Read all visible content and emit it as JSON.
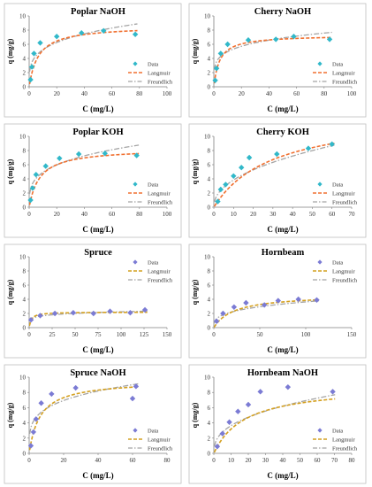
{
  "legend_labels": {
    "data": "Data",
    "langmuir": "Langmuir",
    "freundlich": "Freundlich"
  },
  "colors": {
    "panel_border": "#bfbfbf",
    "axis": "#7f7f7f",
    "grid": "#d9d9d9",
    "data_teal": "#31b8c9",
    "data_purple": "#7b7bd4",
    "langmuir_orange": "#f07030",
    "langmuir_gold": "#d4a020",
    "freundlich_gray": "#a5a5a5"
  },
  "chart_data": [
    {
      "type": "scatter",
      "title": "Poplar NaOH",
      "xlabel": "C (mg/L)",
      "ylabel": "q (mg/g)",
      "xlim": [
        0,
        100
      ],
      "ylim": [
        0,
        10
      ],
      "xticks": [
        0,
        20,
        40,
        60,
        80,
        100
      ],
      "yticks": [
        0,
        2,
        4,
        6,
        8,
        10
      ],
      "grid": false,
      "legend_position": "bottom-right",
      "marker_color": "data_teal",
      "langmuir_color": "langmuir_orange",
      "data": {
        "x": [
          1,
          2,
          3.5,
          8,
          20,
          38,
          54,
          77
        ],
        "y": [
          1.0,
          2.8,
          4.7,
          6.2,
          7.1,
          7.6,
          7.9,
          7.4
        ]
      },
      "langmuir_fit": {
        "qmax": 8.6,
        "K": 0.15
      },
      "freundlich_fit": {
        "Kf": 2.9,
        "n": 3.9
      }
    },
    {
      "type": "scatter",
      "title": "Cherry NaOH",
      "xlabel": "C (mg/L)",
      "ylabel": "q (mg/g)",
      "xlim": [
        0,
        100
      ],
      "ylim": [
        0,
        10
      ],
      "xticks": [
        0,
        20,
        40,
        60,
        80,
        100
      ],
      "yticks": [
        0,
        2,
        4,
        6,
        8,
        10
      ],
      "grid": false,
      "legend_position": "bottom-right",
      "marker_color": "data_teal",
      "langmuir_color": "langmuir_orange",
      "data": {
        "x": [
          1,
          2,
          5,
          10,
          25,
          45,
          58,
          84
        ],
        "y": [
          0.9,
          2.6,
          4.7,
          6.0,
          6.6,
          6.7,
          7.1,
          6.7
        ]
      },
      "langmuir_fit": {
        "qmax": 7.3,
        "K": 0.24
      },
      "freundlich_fit": {
        "Kf": 3.1,
        "n": 4.9
      }
    },
    {
      "type": "scatter",
      "title": "Poplar KOH",
      "xlabel": "C (mg/L)",
      "ylabel": "q (mg/g)",
      "xlim": [
        0,
        100
      ],
      "ylim": [
        0,
        10
      ],
      "xticks": [
        0,
        20,
        40,
        60,
        80,
        100
      ],
      "yticks": [
        0,
        2,
        4,
        6,
        8,
        10
      ],
      "grid": false,
      "legend_position": "bottom-right",
      "marker_color": "data_teal",
      "langmuir_color": "langmuir_orange",
      "data": {
        "x": [
          1,
          2.5,
          5,
          12,
          22,
          36,
          55,
          78
        ],
        "y": [
          1.0,
          2.7,
          4.6,
          5.8,
          6.9,
          7.5,
          7.6,
          7.3
        ]
      },
      "langmuir_fit": {
        "qmax": 8.3,
        "K": 0.13
      },
      "freundlich_fit": {
        "Kf": 2.6,
        "n": 3.6
      }
    },
    {
      "type": "scatter",
      "title": "Cherry KOH",
      "xlabel": "C (mg/L)",
      "ylabel": "q (mg/g)",
      "xlim": [
        0,
        70
      ],
      "ylim": [
        0,
        10
      ],
      "xticks": [
        0,
        10,
        20,
        30,
        40,
        50,
        60,
        70
      ],
      "yticks": [
        0,
        2,
        4,
        6,
        8,
        10
      ],
      "grid": false,
      "legend_position": "bottom-right",
      "marker_color": "data_teal",
      "langmuir_color": "langmuir_orange",
      "data": {
        "x": [
          2,
          3.5,
          6,
          10,
          14,
          18,
          32,
          48,
          60
        ],
        "y": [
          0.8,
          2.5,
          3.2,
          4.4,
          5.6,
          7.0,
          7.5,
          8.3,
          8.9
        ]
      },
      "langmuir_fit": {
        "qmax": 13.5,
        "K": 0.033
      },
      "freundlich_fit": {
        "Kf": 1.35,
        "n": 2.2
      }
    },
    {
      "type": "scatter",
      "title": "Spruce",
      "xlabel": "C (mg/L)",
      "ylabel": "q (mg/g)",
      "xlim": [
        0,
        150
      ],
      "ylim": [
        0,
        10
      ],
      "xticks": [
        0,
        25,
        50,
        75,
        100,
        125,
        150
      ],
      "yticks": [
        0,
        2,
        4,
        6,
        8,
        10
      ],
      "grid": false,
      "legend_position": "top-right",
      "marker_color": "data_purple",
      "langmuir_color": "langmuir_gold",
      "data": {
        "x": [
          2,
          12,
          28,
          48,
          70,
          88,
          110,
          126
        ],
        "y": [
          1.1,
          1.7,
          2.0,
          2.1,
          2.0,
          2.3,
          2.1,
          2.5
        ]
      },
      "langmuir_fit": {
        "qmax": 2.2,
        "K": 0.45
      },
      "freundlich_fit": {
        "Kf": 1.1,
        "n": 6.5
      }
    },
    {
      "type": "scatter",
      "title": "Hornbeam",
      "xlabel": "C (mg/L)",
      "ylabel": "q (mg/g)",
      "xlim": [
        0,
        150
      ],
      "ylim": [
        0,
        10
      ],
      "xticks": [
        0,
        50,
        100,
        150
      ],
      "yticks": [
        0,
        2,
        4,
        6,
        8,
        10
      ],
      "grid": false,
      "legend_position": "top-right",
      "marker_color": "data_purple",
      "langmuir_color": "langmuir_gold",
      "data": {
        "x": [
          3,
          10,
          22,
          35,
          55,
          70,
          92,
          112
        ],
        "y": [
          0.9,
          2.0,
          2.9,
          3.5,
          3.2,
          3.8,
          4.0,
          3.9
        ]
      },
      "langmuir_fit": {
        "qmax": 4.7,
        "K": 0.045
      },
      "freundlich_fit": {
        "Kf": 0.9,
        "n": 3.3
      }
    },
    {
      "type": "scatter",
      "title": "Spruce NaOH",
      "xlabel": "C (mg/L)",
      "ylabel": "q (mg/g)",
      "xlim": [
        0,
        80
      ],
      "ylim": [
        0,
        10
      ],
      "xticks": [
        0,
        20,
        40,
        60,
        80
      ],
      "yticks": [
        0,
        2,
        4,
        6,
        8,
        10
      ],
      "grid": false,
      "legend_position": "bottom-right",
      "marker_color": "data_purple",
      "langmuir_color": "langmuir_gold",
      "data": {
        "x": [
          1,
          2.5,
          4,
          7,
          13,
          27,
          60,
          62
        ],
        "y": [
          1.0,
          2.8,
          4.5,
          6.6,
          7.8,
          8.6,
          7.2,
          8.8
        ]
      },
      "langmuir_fit": {
        "qmax": 9.6,
        "K": 0.16
      },
      "freundlich_fit": {
        "Kf": 3.4,
        "n": 4.2
      }
    },
    {
      "type": "scatter",
      "title": "Hornbeam NaOH",
      "xlabel": "C (mg/L)",
      "ylabel": "q (mg/g)",
      "xlim": [
        0,
        80
      ],
      "ylim": [
        0,
        10
      ],
      "xticks": [
        0,
        10,
        20,
        30,
        40,
        50,
        60,
        70,
        80
      ],
      "yticks": [
        0,
        2,
        4,
        6,
        8,
        10
      ],
      "grid": false,
      "legend_position": "bottom-right",
      "marker_color": "data_purple",
      "langmuir_color": "langmuir_gold",
      "data": {
        "x": [
          2,
          5,
          9,
          14,
          20,
          27,
          43,
          69
        ],
        "y": [
          0.9,
          2.6,
          4.1,
          5.5,
          6.4,
          8.1,
          8.7,
          8.1
        ]
      },
      "langmuir_fit": {
        "qmax": 9.0,
        "K": 0.055
      },
      "freundlich_fit": {
        "Kf": 1.5,
        "n": 2.6
      }
    }
  ]
}
